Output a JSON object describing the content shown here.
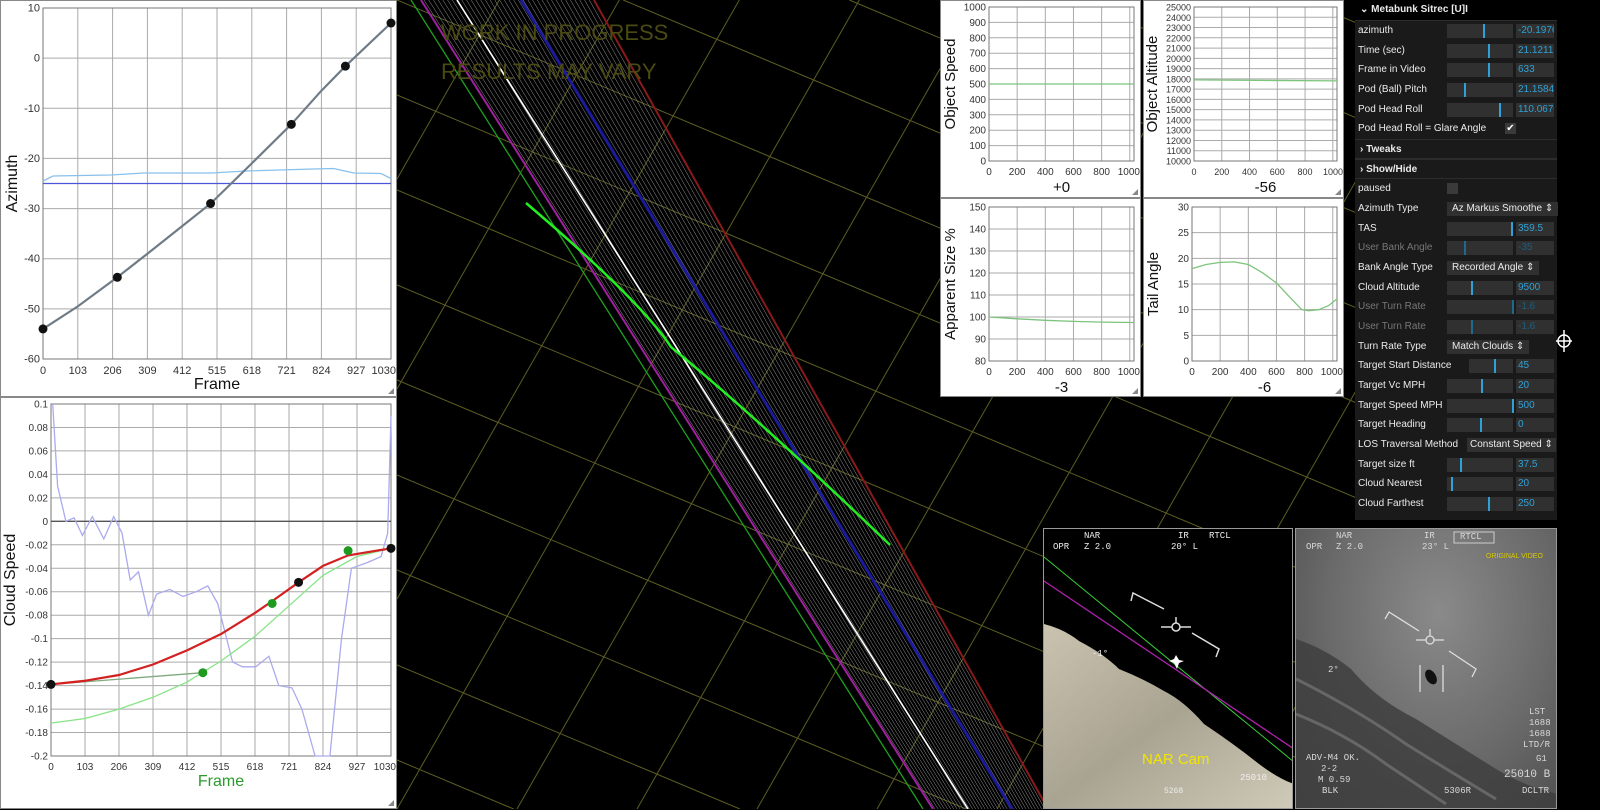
{
  "watermark": {
    "line1": "WORK IN PROGRESS",
    "line2": "RESULTS MAY VARY",
    "color": "#4a4a12"
  },
  "gui": {
    "title": "Metabunk Sitrec [U]I",
    "rows": [
      {
        "label": "azimuth",
        "type": "slider",
        "value": "-20.1976",
        "level": 0.55
      },
      {
        "label": "Time (sec)",
        "type": "slider",
        "value": "21.12112",
        "level": 0.62
      },
      {
        "label": "Frame in Video",
        "type": "slider",
        "value": "633",
        "level": 0.62
      },
      {
        "label": "Pod (Ball) Pitch",
        "type": "slider",
        "value": "21.1584",
        "level": 0.25
      },
      {
        "label": "Pod Head Roll",
        "type": "slider",
        "value": "110.0670",
        "level": 0.79
      },
      {
        "label": "Pod Head Roll = Glare Angle",
        "type": "checkbox",
        "checked": true
      },
      {
        "label": "Tweaks",
        "type": "folder",
        "open": false
      },
      {
        "label": "Show/Hide",
        "type": "folder",
        "open": false
      },
      {
        "label": "paused",
        "type": "checkbox",
        "checked": false
      },
      {
        "label": "Azimuth Type",
        "type": "select",
        "value": "Az Markus Smoothe"
      },
      {
        "label": "TAS",
        "type": "slider",
        "value": "359.5",
        "level": 0.97
      },
      {
        "label": "User Bank Angle",
        "type": "slider",
        "value": "-35",
        "level": 0.25,
        "disabled": true
      },
      {
        "label": "Bank Angle Type",
        "type": "select",
        "value": "Recorded Angle"
      },
      {
        "label": "Cloud Altitude",
        "type": "slider",
        "value": "9500",
        "level": 0.37
      },
      {
        "label": "User Turn Rate",
        "type": "slider",
        "value": "-1.6",
        "level": 0.98,
        "disabled": true
      },
      {
        "label": "User Turn Rate",
        "type": "slider",
        "value": "-1.6",
        "level": 0.36,
        "disabled": true
      },
      {
        "label": "Turn Rate Type",
        "type": "select",
        "value": "Match Clouds"
      },
      {
        "label": "Target Start Distance",
        "type": "slider",
        "value": "45",
        "level": 0.56
      },
      {
        "label": "Target Vc MPH",
        "type": "slider",
        "value": "20",
        "level": 0.52
      },
      {
        "label": "Target Speed MPH",
        "type": "slider",
        "value": "500",
        "level": 0.98
      },
      {
        "label": "Target Heading",
        "type": "slider",
        "value": "0",
        "level": 0.5
      },
      {
        "label": "LOS Traversal Method",
        "type": "select",
        "value": "Constant Speed"
      },
      {
        "label": "Target size ft",
        "type": "slider",
        "value": "37.5",
        "level": 0.19
      },
      {
        "label": "Cloud Nearest",
        "type": "slider",
        "value": "20",
        "level": 0.06
      },
      {
        "label": "Cloud Farthest",
        "type": "slider",
        "value": "250",
        "level": 0.62
      }
    ],
    "accent": "#2fa1d6"
  },
  "nar_cam": {
    "nar": "NAR",
    "opr": "OPR",
    "zoom": "Z 2.0",
    "ir": "IR",
    "angle": "20° L",
    "rtcl": "RTCL",
    "horizon": "-1°",
    "label": "NAR Cam",
    "alt": "25010",
    "bottom": "5268",
    "label_color": "#f2e600"
  },
  "original_video": {
    "nar": "NAR",
    "opr": "OPR",
    "zoom": "Z 2.0",
    "ir": "IR",
    "angle": "23° L",
    "rtcl": "RTCL",
    "label": "ORIGINAL VIDEO",
    "horizon": "2°",
    "lst": "LST",
    "n1": "1688",
    "n2": "1688",
    "ltd": "LTD/R",
    "g1": "G1",
    "alt": "25010 B",
    "adv": "ADV-M4 OK.",
    "two": "2-2",
    "mach": "M 0.59",
    "blk": "BLK",
    "code": "5306R",
    "dcltr": "DCLTR",
    "label_color": "#d8c800"
  },
  "chart_data": [
    {
      "id": "azimuth",
      "type": "line",
      "title": "",
      "xlabel": "Frame",
      "ylabel": "Azimuth",
      "xlim": [
        0,
        1030
      ],
      "ylim": [
        -60,
        10
      ],
      "grid": true,
      "xticks": [
        0,
        103,
        206,
        309,
        412,
        515,
        618,
        721,
        824,
        927,
        1030
      ],
      "yticks": [
        -60,
        -50,
        -40,
        -30,
        -20,
        -10,
        0,
        10
      ],
      "series": [
        {
          "color": "#88c0ec",
          "values": [
            [
              0,
              -24.5
            ],
            [
              30,
              -23.5
            ],
            [
              200,
              -23.3
            ],
            [
              300,
              -22.9
            ],
            [
              500,
              -22.9
            ],
            [
              600,
              -22.5
            ],
            [
              800,
              -22.1
            ],
            [
              860,
              -22
            ],
            [
              920,
              -22.9
            ],
            [
              1000,
              -23
            ],
            [
              1030,
              -24
            ]
          ]
        },
        {
          "color": "#4b55d8",
          "values": [
            [
              0,
              -25
            ],
            [
              1030,
              -25
            ]
          ]
        },
        {
          "color": "#6f7c88",
          "width": 2.2,
          "values": [
            [
              0,
              -54
            ],
            [
              103,
              -49.5
            ],
            [
              220,
              -43.7
            ],
            [
              309,
              -39
            ],
            [
              412,
              -33.5
            ],
            [
              496,
              -29
            ],
            [
              618,
              -21
            ],
            [
              735,
              -13.2
            ],
            [
              824,
              -6.5
            ],
            [
              895,
              -1.6
            ],
            [
              1030,
              7
            ]
          ]
        }
      ],
      "points": [
        {
          "color": "#111",
          "values": [
            [
              0,
              -54
            ],
            [
              220,
              -43.7
            ],
            [
              496,
              -29
            ],
            [
              735,
              -13.2
            ],
            [
              895,
              -1.6
            ],
            [
              1030,
              7
            ]
          ]
        }
      ]
    },
    {
      "id": "cloud-speed",
      "type": "line",
      "title": "",
      "xlabel": "Frame",
      "ylabel": "Cloud Speed",
      "xlabel_color": "#2a9a2a",
      "xlim": [
        0,
        1030
      ],
      "ylim": [
        -0.2,
        0.1
      ],
      "grid": true,
      "xticks": [
        0,
        103,
        206,
        309,
        412,
        515,
        618,
        721,
        824,
        927,
        1030
      ],
      "yticks": [
        -0.2,
        -0.18,
        -0.16,
        -0.14,
        -0.12,
        -0.1,
        -0.08,
        -0.06,
        -0.04,
        -0.02,
        0,
        0.02,
        0.04,
        0.06,
        0.08,
        0.1
      ],
      "series": [
        {
          "color": "#555",
          "values": [
            [
              0,
              0
            ],
            [
              1030,
              0
            ]
          ]
        },
        {
          "color": "#aaaaee",
          "values": [
            [
              5,
              0.1
            ],
            [
              20,
              0.03
            ],
            [
              45,
              0
            ],
            [
              70,
              0.003
            ],
            [
              95,
              -0.012
            ],
            [
              125,
              0.004
            ],
            [
              160,
              -0.015
            ],
            [
              190,
              0.004
            ],
            [
              215,
              -0.01
            ],
            [
              240,
              -0.05
            ],
            [
              265,
              -0.043
            ],
            [
              295,
              -0.08
            ],
            [
              320,
              -0.062
            ],
            [
              360,
              -0.058
            ],
            [
              400,
              -0.064
            ],
            [
              440,
              -0.06
            ],
            [
              475,
              -0.055
            ],
            [
              505,
              -0.07
            ],
            [
              550,
              -0.12
            ],
            [
              580,
              -0.124
            ],
            [
              620,
              -0.124
            ],
            [
              660,
              -0.115
            ],
            [
              690,
              -0.14
            ],
            [
              730,
              -0.142
            ],
            [
              760,
              -0.16
            ],
            [
              800,
              -0.2
            ],
            [
              845,
              -0.2
            ],
            [
              880,
              -0.1
            ],
            [
              910,
              -0.04
            ],
            [
              960,
              -0.035
            ],
            [
              1000,
              -0.03
            ],
            [
              1020,
              -0.01
            ],
            [
              1030,
              0.09
            ]
          ]
        },
        {
          "color": "#7eaa7e",
          "values": [
            [
              0,
              -0.139
            ],
            [
              460,
              -0.129
            ]
          ]
        },
        {
          "color": "#86e486",
          "values": [
            [
              0,
              -0.172
            ],
            [
              103,
              -0.168
            ],
            [
              206,
              -0.16
            ],
            [
              309,
              -0.15
            ],
            [
              412,
              -0.137
            ],
            [
              515,
              -0.119
            ],
            [
              618,
              -0.098
            ],
            [
              721,
              -0.072
            ],
            [
              824,
              -0.046
            ],
            [
              927,
              -0.03
            ],
            [
              1030,
              -0.023
            ]
          ]
        },
        {
          "color": "#d42020",
          "width": 2.2,
          "values": [
            [
              0,
              -0.139
            ],
            [
              100,
              -0.136
            ],
            [
              206,
              -0.131
            ],
            [
              309,
              -0.122
            ],
            [
              412,
              -0.11
            ],
            [
              515,
              -0.096
            ],
            [
              618,
              -0.078
            ],
            [
              670,
              -0.068
            ],
            [
              750,
              -0.052
            ],
            [
              824,
              -0.038
            ],
            [
              900,
              -0.029
            ],
            [
              1030,
              -0.023
            ]
          ]
        }
      ],
      "points": [
        {
          "color": "#1e9a1e",
          "values": [
            [
              460,
              -0.129
            ],
            [
              670,
              -0.07
            ],
            [
              900,
              -0.025
            ]
          ]
        },
        {
          "color": "#111",
          "values": [
            [
              0,
              -0.139
            ],
            [
              750,
              -0.052
            ],
            [
              1030,
              -0.023
            ]
          ]
        }
      ]
    },
    {
      "id": "object-speed",
      "type": "line",
      "xlabel": "+0",
      "ylabel": "Object Speed",
      "xlim": [
        0,
        1030
      ],
      "ylim": [
        0,
        1000
      ],
      "grid": true,
      "xticks": [
        0,
        200,
        400,
        600,
        800,
        1000
      ],
      "yticks": [
        0,
        100,
        200,
        300,
        400,
        500,
        600,
        700,
        800,
        900,
        1000
      ],
      "series": [
        {
          "color": "#7cc47c",
          "values": [
            [
              0,
              500
            ],
            [
              1030,
              500
            ]
          ]
        }
      ]
    },
    {
      "id": "object-altitude",
      "type": "line",
      "xlabel": "-56",
      "ylabel": "Object Altitude",
      "xlim": [
        0,
        1030
      ],
      "ylim": [
        10000,
        25000
      ],
      "grid": true,
      "xticks": [
        0,
        200,
        400,
        600,
        800,
        1000
      ],
      "yticks": [
        10000,
        11000,
        12000,
        13000,
        14000,
        15000,
        16000,
        17000,
        18000,
        19000,
        20000,
        21000,
        22000,
        23000,
        24000,
        25000
      ],
      "series": [
        {
          "color": "#7cc47c",
          "values": [
            [
              0,
              17900
            ],
            [
              1030,
              17800
            ]
          ]
        }
      ]
    },
    {
      "id": "apparent-size",
      "type": "line",
      "xlabel": "-3",
      "ylabel": "Apparent Size %",
      "xlim": [
        0,
        1030
      ],
      "ylim": [
        80,
        150
      ],
      "grid": true,
      "xticks": [
        0,
        200,
        400,
        600,
        800,
        1000
      ],
      "yticks": [
        80,
        90,
        100,
        110,
        120,
        130,
        140,
        150
      ],
      "series": [
        {
          "color": "#7cc47c",
          "values": [
            [
              0,
              100
            ],
            [
              200,
              99.2
            ],
            [
              400,
              98.5
            ],
            [
              600,
              98
            ],
            [
              800,
              97.7
            ],
            [
              1030,
              97.5
            ]
          ]
        }
      ]
    },
    {
      "id": "tail-angle",
      "type": "line",
      "xlabel": "-6",
      "ylabel": "Tail Angle",
      "xlim": [
        0,
        1030
      ],
      "ylim": [
        0,
        30
      ],
      "grid": true,
      "xticks": [
        0,
        200,
        400,
        600,
        800,
        1000
      ],
      "yticks": [
        0,
        5,
        10,
        15,
        20,
        25,
        30
      ],
      "series": [
        {
          "color": "#7cc47c",
          "values": [
            [
              0,
              18
            ],
            [
              100,
              18.8
            ],
            [
              200,
              19.2
            ],
            [
              300,
              19.3
            ],
            [
              400,
              18.8
            ],
            [
              500,
              17.2
            ],
            [
              600,
              15.2
            ],
            [
              700,
              12.3
            ],
            [
              780,
              10
            ],
            [
              830,
              9.8
            ],
            [
              900,
              10
            ],
            [
              970,
              10.8
            ],
            [
              1030,
              12.1
            ]
          ]
        }
      ]
    }
  ]
}
